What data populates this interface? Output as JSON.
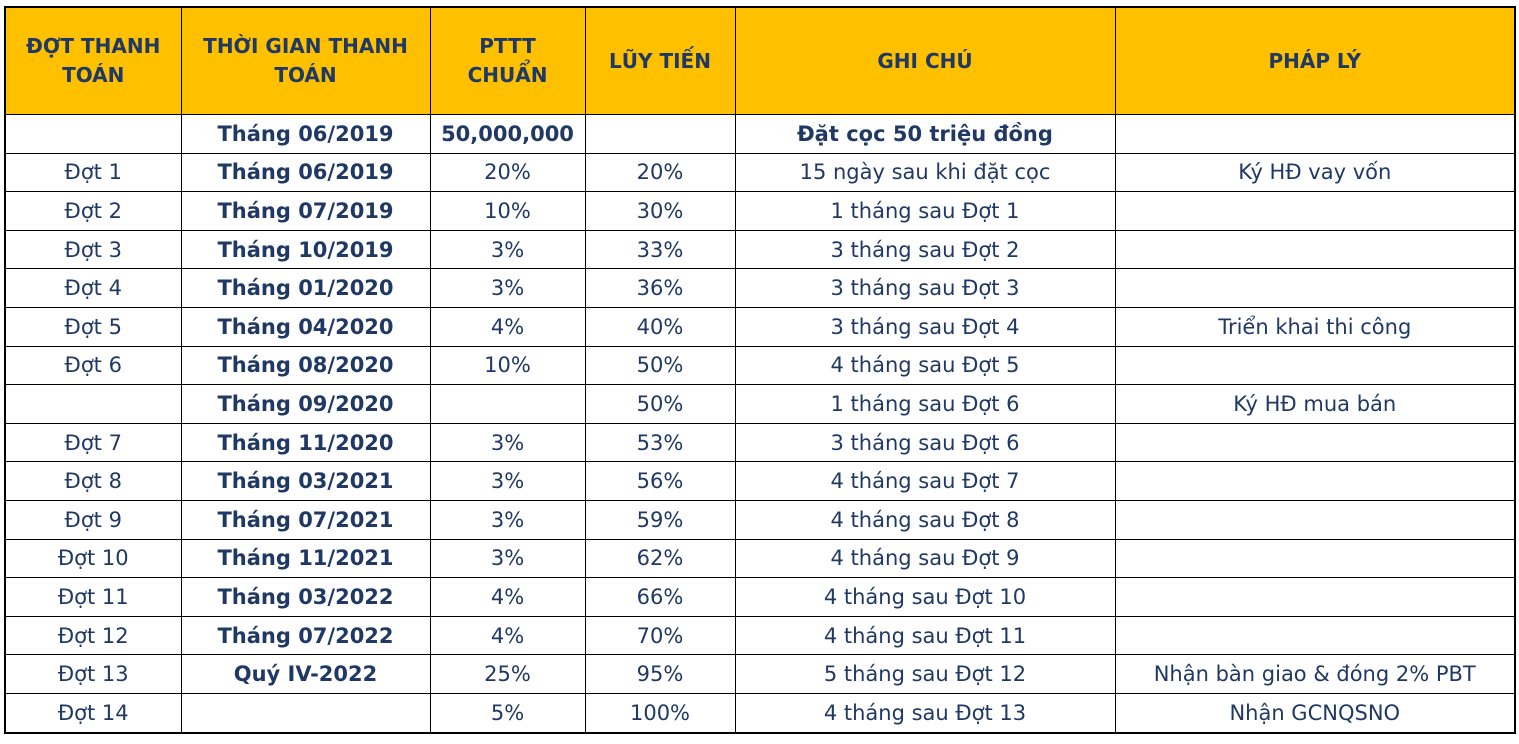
{
  "colors": {
    "header_bg": "#FFC000",
    "text": "#1F3864",
    "border": "#000000",
    "page_bg": "#FFFFFF"
  },
  "table": {
    "columns": [
      "ĐỢT THANH\nTOÁN",
      "THỜI GIAN THANH\nTOÁN",
      "PTTT\nCHUẨN",
      "LŨY TIẾN",
      "GHI CHÚ",
      "PHÁP LÝ"
    ],
    "rows": [
      [
        "",
        "Tháng 06/2019",
        "50,000,000",
        "",
        "Đặt cọc 50 triệu đồng",
        ""
      ],
      [
        "Đợt 1",
        "Tháng 06/2019",
        "20%",
        "20%",
        "15 ngày sau khi đặt cọc",
        "Ký HĐ vay vốn"
      ],
      [
        "Đợt 2",
        "Tháng 07/2019",
        "10%",
        "30%",
        "1 tháng sau Đợt 1",
        ""
      ],
      [
        "Đợt 3",
        "Tháng 10/2019",
        "3%",
        "33%",
        "3 tháng sau Đợt 2",
        ""
      ],
      [
        "Đợt 4",
        "Tháng 01/2020",
        "3%",
        "36%",
        "3 tháng sau Đợt 3",
        ""
      ],
      [
        "Đợt 5",
        "Tháng 04/2020",
        "4%",
        "40%",
        "3 tháng sau Đợt 4",
        "Triển khai thi công"
      ],
      [
        "Đợt 6",
        "Tháng 08/2020",
        "10%",
        "50%",
        "4 tháng sau Đợt 5",
        ""
      ],
      [
        "",
        "Tháng 09/2020",
        "",
        "50%",
        "1 tháng sau Đợt 6",
        "Ký HĐ mua bán"
      ],
      [
        "Đợt 7",
        "Tháng 11/2020",
        "3%",
        "53%",
        "3 tháng sau Đợt 6",
        ""
      ],
      [
        "Đợt 8",
        "Tháng 03/2021",
        "3%",
        "56%",
        "4 tháng sau Đợt 7",
        ""
      ],
      [
        "Đợt 9",
        "Tháng 07/2021",
        "3%",
        "59%",
        "4 tháng sau Đợt 8",
        ""
      ],
      [
        "Đợt 10",
        "Tháng 11/2021",
        "3%",
        "62%",
        "4 tháng sau Đợt 9",
        ""
      ],
      [
        "Đợt 11",
        "Tháng 03/2022",
        "4%",
        "66%",
        "4 tháng sau Đợt 10",
        ""
      ],
      [
        "Đợt 12",
        "Tháng 07/2022",
        "4%",
        "70%",
        "4 tháng sau Đợt 11",
        ""
      ],
      [
        "Đợt 13",
        "Quý IV-2022",
        "25%",
        "95%",
        "5 tháng sau Đợt 12",
        "Nhận bàn giao & đóng 2% PBT"
      ],
      [
        "Đợt 14",
        "",
        "5%",
        "100%",
        "4 tháng sau Đợt 13",
        "Nhận GCNQSNO"
      ]
    ]
  }
}
